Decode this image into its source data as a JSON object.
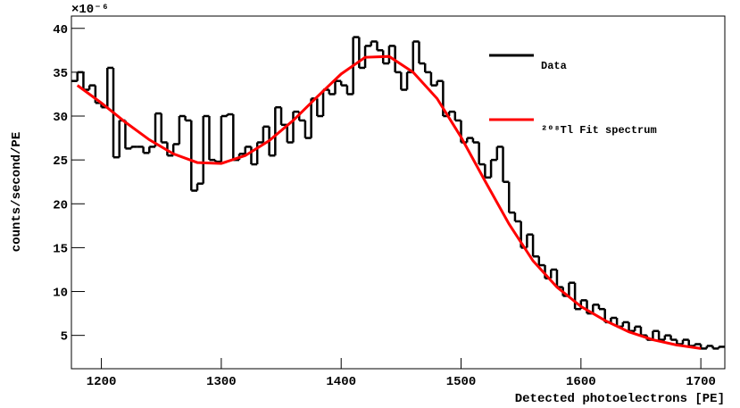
{
  "chart_data": {
    "type": "histogram",
    "x_label": "Detected photoelectrons [PE]",
    "y_label": "counts/second/PE",
    "y_multiplier": "×10⁻⁶",
    "xlim": [
      1175,
      1720
    ],
    "ylim": [
      1.2,
      41.4
    ],
    "xticks": [
      1200,
      1300,
      1400,
      1500,
      1600,
      1700
    ],
    "yticks": [
      5,
      10,
      15,
      20,
      25,
      30,
      35,
      40
    ],
    "bins": [
      1175,
      1180,
      1185,
      1190,
      1195,
      1200,
      1205,
      1210,
      1215,
      1220,
      1225,
      1230,
      1235,
      1240,
      1245,
      1250,
      1255,
      1260,
      1265,
      1270,
      1275,
      1280,
      1285,
      1290,
      1295,
      1300,
      1305,
      1310,
      1315,
      1320,
      1325,
      1330,
      1335,
      1340,
      1345,
      1350,
      1355,
      1360,
      1365,
      1370,
      1375,
      1380,
      1385,
      1390,
      1395,
      1400,
      1405,
      1410,
      1415,
      1420,
      1425,
      1430,
      1435,
      1440,
      1445,
      1450,
      1455,
      1460,
      1465,
      1470,
      1475,
      1480,
      1485,
      1490,
      1495,
      1500,
      1505,
      1510,
      1515,
      1520,
      1525,
      1530,
      1535,
      1540,
      1545,
      1550,
      1555,
      1560,
      1565,
      1570,
      1575,
      1580,
      1585,
      1590,
      1595,
      1600,
      1605,
      1610,
      1615,
      1620,
      1625,
      1630,
      1635,
      1640,
      1645,
      1650,
      1655,
      1660,
      1665,
      1670,
      1675,
      1680,
      1685,
      1690,
      1695,
      1700,
      1705,
      1710,
      1715,
      1720
    ],
    "series": [
      {
        "name": "Data",
        "color": "#000000",
        "values": [
          34,
          35,
          33,
          33.5,
          31.5,
          31,
          35.5,
          25.3,
          29.5,
          26.3,
          26.5,
          26.5,
          25.8,
          26.5,
          30.3,
          27,
          25.5,
          26.8,
          30,
          29.5,
          21.5,
          22.3,
          30,
          25,
          24.8,
          30,
          30.2,
          25,
          25.7,
          26.5,
          24.5,
          27,
          28.8,
          25.5,
          31,
          29,
          27,
          30.5,
          29.5,
          27.5,
          32,
          30,
          33,
          32.5,
          34,
          33.5,
          32.5,
          39,
          35.5,
          38,
          38.5,
          37.5,
          36,
          38,
          35,
          33,
          35,
          38.5,
          36,
          35,
          33.5,
          34,
          30,
          30.5,
          29.5,
          27,
          27.5,
          27,
          24.5,
          23,
          25,
          26.5,
          22.5,
          19,
          18,
          15,
          16.5,
          14,
          13,
          11.5,
          12.5,
          10.5,
          9.5,
          11,
          8,
          9,
          7.5,
          8.5,
          8,
          6.5,
          7,
          6,
          6.5,
          5.5,
          6,
          5,
          4.5,
          5.5,
          4.5,
          5,
          4.5,
          4,
          4.5,
          3.8,
          4,
          3.5,
          3.8,
          3.5,
          3.7
        ]
      },
      {
        "name": "²⁰⁸Tl Fit spectrum",
        "color": "#ff0000",
        "x": [
          1180,
          1200,
          1220,
          1240,
          1260,
          1280,
          1300,
          1320,
          1340,
          1360,
          1380,
          1400,
          1420,
          1440,
          1460,
          1480,
          1500,
          1520,
          1540,
          1560,
          1580,
          1600,
          1620,
          1640,
          1660,
          1680,
          1700
        ],
        "values": [
          33.5,
          31.5,
          29.3,
          27.3,
          25.7,
          24.7,
          24.6,
          25.5,
          27.2,
          29.5,
          32.2,
          34.8,
          36.7,
          36.8,
          35.0,
          32.0,
          27.6,
          22.6,
          17.7,
          13.5,
          10.5,
          8.3,
          6.7,
          5.4,
          4.5,
          3.9,
          3.5
        ]
      }
    ]
  }
}
